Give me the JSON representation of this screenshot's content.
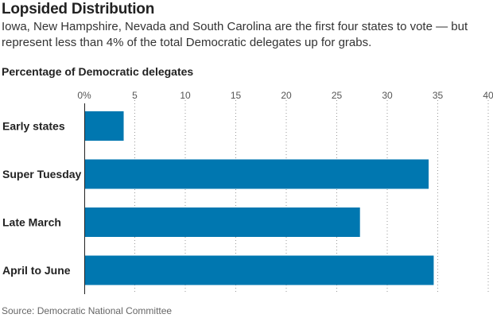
{
  "header": {
    "title": "Lopsided Distribution",
    "subtitle": "Iowa, New Hampshire, Nevada and South Carolina are the first four states to vote — but represent less than 4% of the total Democratic delegates up for grabs.",
    "axis_caption": "Percentage of Democratic delegates"
  },
  "footer": {
    "source": "Source: Democratic National Committee"
  },
  "chart_data": {
    "type": "bar",
    "orientation": "horizontal",
    "title": "Lopsided Distribution",
    "xlabel": "Percentage of Democratic delegates",
    "ylabel": "",
    "categories": [
      "Early states",
      "Super Tuesday",
      "Late March",
      "April to June"
    ],
    "values": [
      3.9,
      34.1,
      27.3,
      34.6
    ],
    "xlim": [
      0,
      40
    ],
    "ticks": [
      0,
      5,
      10,
      15,
      20,
      25,
      30,
      35,
      40
    ],
    "tick_labels": [
      "0%",
      "5",
      "10",
      "15",
      "20",
      "25",
      "30",
      "35",
      "40"
    ],
    "grid": "vertical dotted",
    "bar_color": "#0077b0"
  }
}
